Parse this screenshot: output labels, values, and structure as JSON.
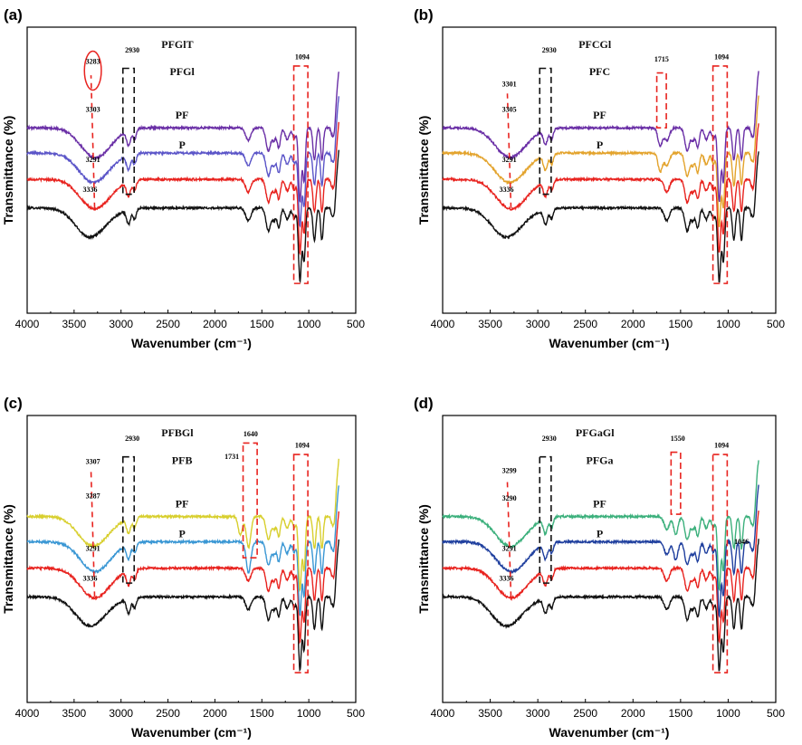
{
  "colors": {
    "black": "#111111",
    "red": "#e8231f",
    "purple": "#6a2fa6",
    "violet": "#5b55c8",
    "orange": "#e3a32c",
    "blue": "#3a97d4",
    "yellow": "#d8cf2e",
    "green": "#3cb07c",
    "navy": "#1f3f9e",
    "red_box": "#e8231f",
    "black_box": "#111111"
  },
  "chart_data": [
    {
      "type": "line",
      "panel": "(a)",
      "xlabel": "Wavenumber (cm⁻¹)",
      "ylabel": "Transmittance (%)",
      "xlim": [
        4000,
        500
      ],
      "xticks": [
        "4000",
        "3500",
        "3000",
        "2500",
        "2000",
        "1500",
        "1000",
        "500"
      ],
      "series": [
        {
          "name": "P",
          "label_at": [
            2350,
            7.2
          ],
          "color": "black",
          "offset": 0,
          "peak_main": 3336,
          "extra": []
        },
        {
          "name": "PF",
          "label_at": [
            2350,
            8.5
          ],
          "color": "red",
          "offset": 1.25,
          "peak_main": 3291,
          "extra": []
        },
        {
          "name": "PFGl",
          "label_at": [
            2350,
            10.4
          ],
          "color": "violet",
          "offset": 2.4,
          "peak_main": 3303,
          "extra": []
        },
        {
          "name": "PFGlT",
          "label_at": [
            2400,
            11.6
          ],
          "color": "purple",
          "offset": 3.5,
          "peak_main": 3283,
          "extra": []
        }
      ],
      "annotations": [
        {
          "text": "3336",
          "at": [
            3330,
            5.3
          ]
        },
        {
          "text": "3291",
          "at": [
            3300,
            6.6
          ]
        },
        {
          "text": "3303",
          "at": [
            3300,
            8.8
          ]
        },
        {
          "text": "3283",
          "at": [
            3300,
            10.9
          ]
        },
        {
          "text": "2930",
          "at": [
            2880,
            11.4
          ]
        },
        {
          "text": "1094",
          "at": [
            1070,
            11.1
          ]
        }
      ],
      "boxes": [
        {
          "x": [
            2980,
            2860
          ],
          "y": [
            5.2,
            10.7
          ],
          "color": "black_box"
        },
        {
          "x": [
            1160,
            1010
          ],
          "y": [
            1.3,
            10.8
          ],
          "color": "red_box"
        }
      ],
      "vlines": [
        {
          "x": 3320,
          "y": [
            4.6,
            10.4
          ],
          "color": "red_box"
        }
      ],
      "ellipses": [
        {
          "cx": 3300,
          "cy": 10.6,
          "rx": 90,
          "ry": 0.85
        }
      ]
    },
    {
      "type": "line",
      "panel": "(b)",
      "xlabel": "Wavenumber (cm⁻¹)",
      "ylabel": "Transmittance (%)",
      "xlim": [
        4000,
        500
      ],
      "xticks": [
        "4000",
        "3500",
        "3000",
        "2500",
        "2000",
        "1500",
        "1000",
        "500"
      ],
      "series": [
        {
          "name": "P",
          "label_at": [
            2350,
            7.2
          ],
          "color": "black",
          "offset": 0,
          "peak_main": 3336,
          "extra": []
        },
        {
          "name": "PF",
          "label_at": [
            2350,
            8.5
          ],
          "color": "red",
          "offset": 1.25,
          "peak_main": 3291,
          "extra": []
        },
        {
          "name": "PFC",
          "label_at": [
            2350,
            10.4
          ],
          "color": "orange",
          "offset": 2.4,
          "peak_main": 3305,
          "extra": [
            1715
          ]
        },
        {
          "name": "PFCGl",
          "label_at": [
            2400,
            11.6
          ],
          "color": "purple",
          "offset": 3.5,
          "peak_main": 3301,
          "extra": [
            1715
          ]
        }
      ],
      "annotations": [
        {
          "text": "3336",
          "at": [
            3330,
            5.3
          ]
        },
        {
          "text": "3291",
          "at": [
            3300,
            6.6
          ]
        },
        {
          "text": "3305",
          "at": [
            3300,
            8.8
          ]
        },
        {
          "text": "3301",
          "at": [
            3300,
            9.9
          ]
        },
        {
          "text": "2930",
          "at": [
            2880,
            11.4
          ]
        },
        {
          "text": "1715",
          "at": [
            1700,
            11.0
          ]
        },
        {
          "text": "1094",
          "at": [
            1070,
            11.1
          ]
        }
      ],
      "boxes": [
        {
          "x": [
            2980,
            2860
          ],
          "y": [
            5.2,
            10.7
          ],
          "color": "black_box"
        },
        {
          "x": [
            1750,
            1650
          ],
          "y": [
            8.1,
            10.5
          ],
          "color": "red_box"
        },
        {
          "x": [
            1160,
            1010
          ],
          "y": [
            1.3,
            10.8
          ],
          "color": "red_box"
        }
      ],
      "vlines": [
        {
          "x": 3320,
          "y": [
            4.6,
            9.6
          ],
          "color": "red_box"
        }
      ],
      "ellipses": []
    },
    {
      "type": "line",
      "panel": "(c)",
      "xlabel": "Wavenumber (cm⁻¹)",
      "ylabel": "Transmittance (%)",
      "xlim": [
        4000,
        500
      ],
      "xticks": [
        "4000",
        "3500",
        "3000",
        "2500",
        "2000",
        "1500",
        "1000",
        "500"
      ],
      "series": [
        {
          "name": "P",
          "label_at": [
            2350,
            7.2
          ],
          "color": "black",
          "offset": 0,
          "peak_main": 3336,
          "extra": []
        },
        {
          "name": "PF",
          "label_at": [
            2350,
            8.5
          ],
          "color": "red",
          "offset": 1.25,
          "peak_main": 3291,
          "extra": []
        },
        {
          "name": "PFB",
          "label_at": [
            2350,
            10.4
          ],
          "color": "blue",
          "offset": 2.4,
          "peak_main": 3287,
          "extra": [
            1640
          ]
        },
        {
          "name": "PFBGl",
          "label_at": [
            2400,
            11.6
          ],
          "color": "yellow",
          "offset": 3.5,
          "peak_main": 3307,
          "extra": [
            1731,
            1640
          ]
        }
      ],
      "annotations": [
        {
          "text": "3336",
          "at": [
            3330,
            5.3
          ]
        },
        {
          "text": "3291",
          "at": [
            3300,
            6.6
          ]
        },
        {
          "text": "3287",
          "at": [
            3300,
            8.9
          ]
        },
        {
          "text": "3307",
          "at": [
            3300,
            10.4
          ]
        },
        {
          "text": "2930",
          "at": [
            2880,
            11.4
          ]
        },
        {
          "text": "1640",
          "at": [
            1620,
            11.6
          ]
        },
        {
          "text": "1731",
          "at": [
            1820,
            10.6
          ]
        },
        {
          "text": "1094",
          "at": [
            1070,
            11.1
          ]
        }
      ],
      "boxes": [
        {
          "x": [
            2980,
            2860
          ],
          "y": [
            5.2,
            10.7
          ],
          "color": "black_box"
        },
        {
          "x": [
            1700,
            1550
          ],
          "y": [
            6.3,
            11.3
          ],
          "color": "red_box"
        },
        {
          "x": [
            1160,
            1010
          ],
          "y": [
            1.3,
            10.8
          ],
          "color": "red_box"
        }
      ],
      "vlines": [
        {
          "x": 3320,
          "y": [
            4.6,
            10.1
          ],
          "color": "red_box"
        }
      ],
      "ellipses": []
    },
    {
      "type": "line",
      "panel": "(d)",
      "xlabel": "Wavenumber (cm⁻¹)",
      "ylabel": "Transmittance (%)",
      "xlim": [
        4000,
        500
      ],
      "xticks": [
        "4000",
        "3500",
        "3000",
        "2500",
        "2000",
        "1500",
        "1000",
        "500"
      ],
      "series": [
        {
          "name": "P",
          "label_at": [
            2350,
            7.2
          ],
          "color": "black",
          "offset": 0,
          "peak_main": 3336,
          "extra": []
        },
        {
          "name": "PF",
          "label_at": [
            2350,
            8.5
          ],
          "color": "red",
          "offset": 1.25,
          "peak_main": 3291,
          "extra": []
        },
        {
          "name": "PFGa",
          "label_at": [
            2350,
            10.4
          ],
          "color": "navy",
          "offset": 2.4,
          "peak_main": 3290,
          "extra": [
            1550
          ]
        },
        {
          "name": "PFGaGl",
          "label_at": [
            2400,
            11.6
          ],
          "color": "green",
          "offset": 3.5,
          "peak_main": 3299,
          "extra": [
            1550
          ]
        }
      ],
      "annotations": [
        {
          "text": "3336",
          "at": [
            3330,
            5.3
          ]
        },
        {
          "text": "3291",
          "at": [
            3300,
            6.6
          ]
        },
        {
          "text": "3290",
          "at": [
            3300,
            8.8
          ]
        },
        {
          "text": "3299",
          "at": [
            3300,
            10.0
          ]
        },
        {
          "text": "2930",
          "at": [
            2880,
            11.4
          ]
        },
        {
          "text": "1550",
          "at": [
            1530,
            11.4
          ]
        },
        {
          "text": "1094",
          "at": [
            1070,
            11.1
          ]
        },
        {
          "text": "1046",
          "at": [
            860,
            6.9
          ]
        }
      ],
      "boxes": [
        {
          "x": [
            2980,
            2860
          ],
          "y": [
            5.2,
            10.7
          ],
          "color": "black_box"
        },
        {
          "x": [
            1600,
            1500
          ],
          "y": [
            8.2,
            10.9
          ],
          "color": "red_box"
        },
        {
          "x": [
            1160,
            1010
          ],
          "y": [
            1.3,
            10.8
          ],
          "color": "red_box"
        }
      ],
      "vlines": [
        {
          "x": 3320,
          "y": [
            4.6,
            9.6
          ],
          "color": "red_box"
        }
      ],
      "ellipses": []
    }
  ]
}
